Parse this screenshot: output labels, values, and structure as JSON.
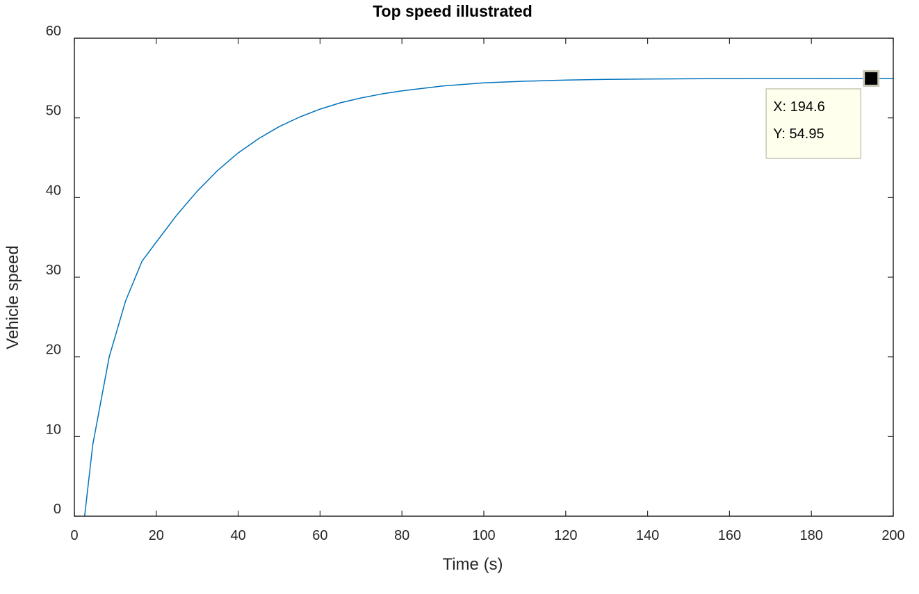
{
  "chart_data": {
    "type": "line",
    "title": "Top speed illustrated",
    "xlabel": "Time (s)",
    "ylabel": "Vehicle speed",
    "xlim": [
      0,
      200
    ],
    "ylim": [
      0,
      60
    ],
    "xticks": [
      0,
      20,
      40,
      60,
      80,
      100,
      120,
      140,
      160,
      180,
      200
    ],
    "yticks": [
      0,
      10,
      20,
      30,
      40,
      50,
      60
    ],
    "grid": false,
    "series": [
      {
        "color": "#0072BD",
        "x": [
          2.5,
          4.5,
          8.5,
          12.5,
          16.5,
          20,
          25,
          30,
          35,
          40,
          45,
          50,
          55,
          60,
          65,
          70,
          75,
          80,
          90,
          100,
          110,
          120,
          130,
          140,
          150,
          160,
          170,
          180,
          190,
          194.6,
          200
        ],
        "y": [
          0,
          9,
          20,
          27,
          32,
          34.4,
          37.8,
          40.8,
          43.4,
          45.6,
          47.4,
          48.9,
          50.1,
          51.1,
          51.9,
          52.5,
          53.0,
          53.4,
          54.0,
          54.4,
          54.6,
          54.75,
          54.83,
          54.88,
          54.91,
          54.93,
          54.94,
          54.945,
          54.95,
          54.95,
          54.95
        ]
      }
    ],
    "datatip": {
      "x": 194.6,
      "y": 54.95,
      "x_text": "X: 194.6",
      "y_text": "Y: 54.95"
    }
  }
}
